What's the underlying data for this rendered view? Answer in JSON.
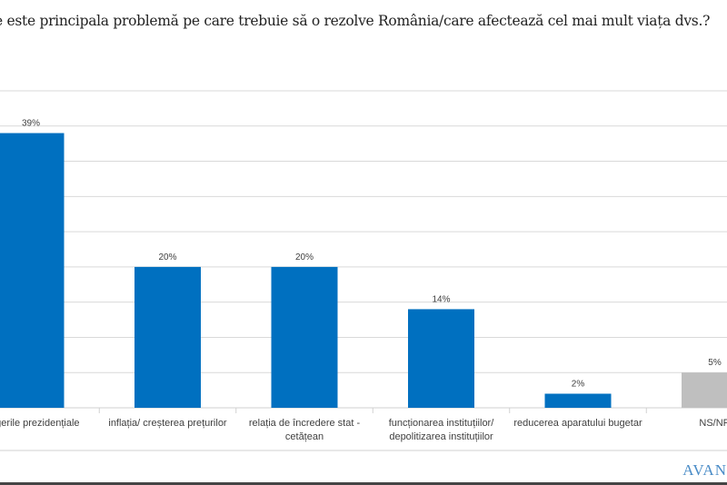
{
  "chart_data": {
    "type": "bar",
    "title": "Care este principala problemă pe care trebuie să o rezolve România/care afectează cel mai mult viața dvs.?",
    "title_visible": "e este principala problemă pe care trebuie să o rezolve România/care afectează cel mai mult viața dvs.?",
    "categories": [
      [
        "alegerile  prezidențiale"
      ],
      [
        "inflația/ creșterea prețurilor"
      ],
      [
        "relația de încredere stat -",
        "cetățean"
      ],
      [
        "funcționarea instituțiilor/",
        "depolitizarea instituțiilor"
      ],
      [
        "reducerea aparatului bugetar"
      ],
      [
        "NS/NR"
      ]
    ],
    "values": [
      39,
      20,
      20,
      14,
      2,
      5
    ],
    "labels": [
      "39%",
      "20%",
      "20%",
      "14%",
      "2%",
      "5%"
    ],
    "colors": [
      "#0070c0",
      "#0070c0",
      "#0070c0",
      "#0070c0",
      "#0070c0",
      "#bfbfbf"
    ],
    "ylim": [
      0,
      45
    ],
    "grid": true,
    "xlabel": "",
    "ylabel": ""
  },
  "logo": "AVAN"
}
